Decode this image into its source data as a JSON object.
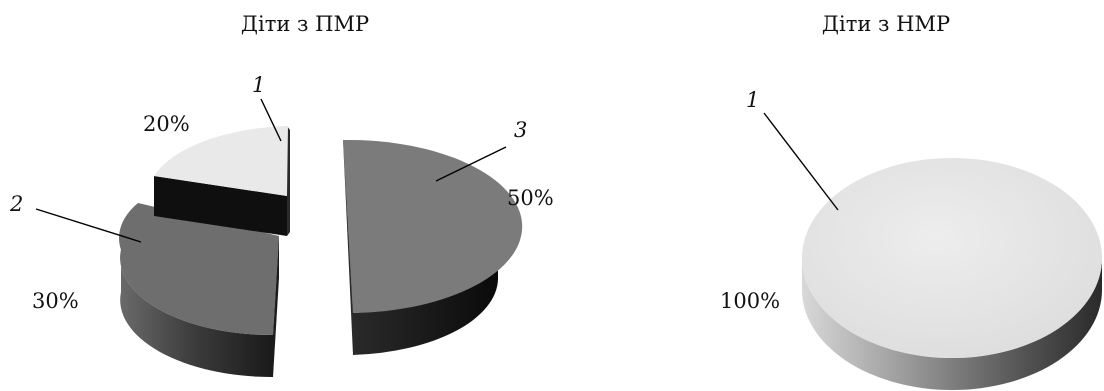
{
  "chart_data": [
    {
      "type": "pie",
      "style": "3d-exploded",
      "title": "Діти з ПМР",
      "slices": [
        {
          "label": "1",
          "value": 20,
          "value_label": "20%",
          "color": "#e6e6e6"
        },
        {
          "label": "2",
          "value": 30,
          "value_label": "30%",
          "color": "#6e6e6e"
        },
        {
          "label": "3",
          "value": 50,
          "value_label": "50%",
          "color": "#7a7a7a"
        }
      ]
    },
    {
      "type": "pie",
      "style": "3d",
      "title": "Діти з НМР",
      "slices": [
        {
          "label": "1",
          "value": 100,
          "value_label": "100%",
          "color": "#e6e6e6"
        }
      ]
    }
  ]
}
